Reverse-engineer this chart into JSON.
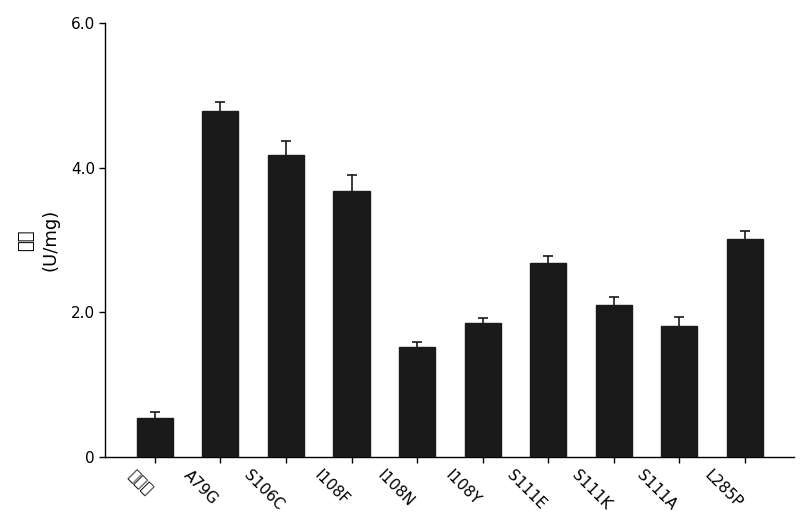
{
  "categories": [
    "野生型",
    "A79G",
    "S106C",
    "I108F",
    "I108N",
    "I108Y",
    "S111E",
    "S111K",
    "S111A",
    "L285P"
  ],
  "values": [
    0.55,
    4.78,
    4.18,
    3.68,
    1.52,
    1.85,
    2.68,
    2.1,
    1.82,
    3.02
  ],
  "errors": [
    0.07,
    0.13,
    0.18,
    0.22,
    0.07,
    0.08,
    0.1,
    0.12,
    0.12,
    0.1
  ],
  "bar_color": "#1a1a1a",
  "bar_edge_color": "#1a1a1a",
  "error_color": "#1a1a1a",
  "ylabel_chinese": "酶活",
  "ylabel_english": "(U/mg)",
  "ylim": [
    0,
    6.0
  ],
  "yticks": [
    0,
    2.0,
    4.0,
    6.0
  ],
  "ytick_labels": [
    "0",
    "2.0",
    "4.0",
    "6.0"
  ],
  "background_color": "#ffffff",
  "bar_width": 0.55,
  "ylabel_fontsize": 13,
  "tick_fontsize": 11,
  "xtick_rotation": -45
}
